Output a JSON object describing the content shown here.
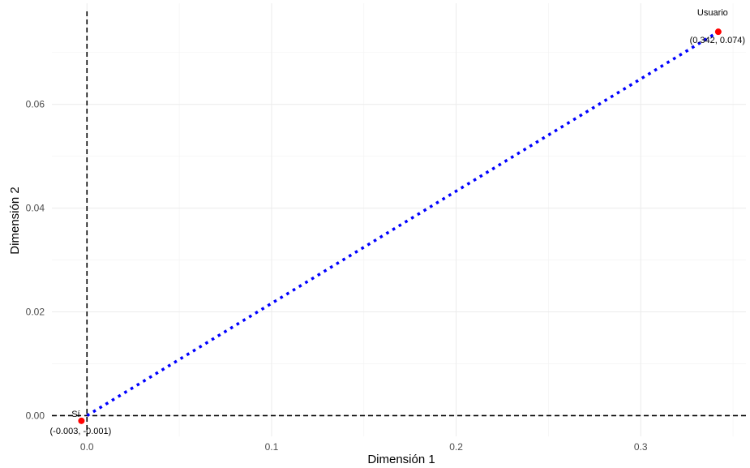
{
  "chart_data": {
    "type": "scatter",
    "title": "",
    "xlabel": "Dimensión 1",
    "ylabel": "Dimensión 2",
    "xlim": [
      -0.019,
      0.357
    ],
    "ylim": [
      -0.004,
      0.0795
    ],
    "x_ticks": [
      0.0,
      0.1,
      0.2,
      0.3
    ],
    "x_tick_labels": [
      "0.0",
      "0.1",
      "0.2",
      "0.3"
    ],
    "y_ticks": [
      0.0,
      0.02,
      0.04,
      0.06
    ],
    "y_tick_labels": [
      "0.00",
      "0.02",
      "0.04",
      "0.06"
    ],
    "grid": true,
    "reference_lines": {
      "x": 0,
      "y": 0,
      "style": "dashed",
      "color": "#000000"
    },
    "points": [
      {
        "name": "Sí",
        "x": -0.003,
        "y": -0.001,
        "label": "(-0.003, -0.001)",
        "color": "#ff0000"
      },
      {
        "name": "Usuario",
        "x": 0.342,
        "y": 0.074,
        "label": "(0.342, 0.074)",
        "color": "#ff0000"
      }
    ],
    "connector": {
      "from": [
        0,
        0
      ],
      "to": [
        0.342,
        0.074
      ],
      "style": "dotted",
      "color": "#0000ff"
    }
  }
}
